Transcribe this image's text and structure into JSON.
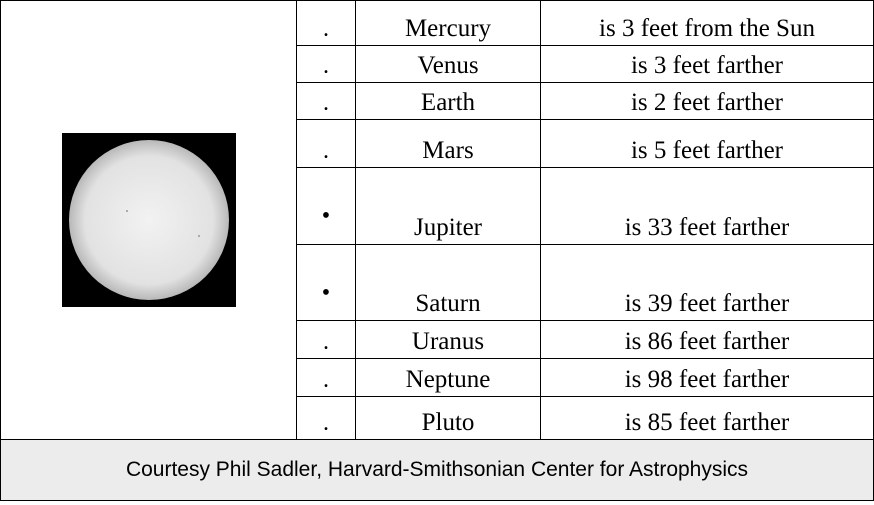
{
  "rows": [
    {
      "marker": ".",
      "planet": "Mercury",
      "distance": "is 3 feet from the Sun"
    },
    {
      "marker": ".",
      "planet": "Venus",
      "distance": "is 3 feet farther"
    },
    {
      "marker": ".",
      "planet": "Earth",
      "distance": "is 2 feet farther"
    },
    {
      "marker": ".",
      "planet": "Mars",
      "distance": "is 5 feet farther"
    },
    {
      "marker": "•",
      "planet": "Jupiter",
      "distance": "is 33 feet farther"
    },
    {
      "marker": "•",
      "planet": "Saturn",
      "distance": "is 39 feet farther"
    },
    {
      "marker": ".",
      "planet": "Uranus",
      "distance": "is 86 feet farther"
    },
    {
      "marker": ".",
      "planet": "Neptune",
      "distance": "is 98 feet farther"
    },
    {
      "marker": ".",
      "planet": "Pluto",
      "distance": "is 85 feet farther"
    }
  ],
  "footer": "Courtesy Phil Sadler, Harvard-Smithsonian Center for Astrophysics"
}
